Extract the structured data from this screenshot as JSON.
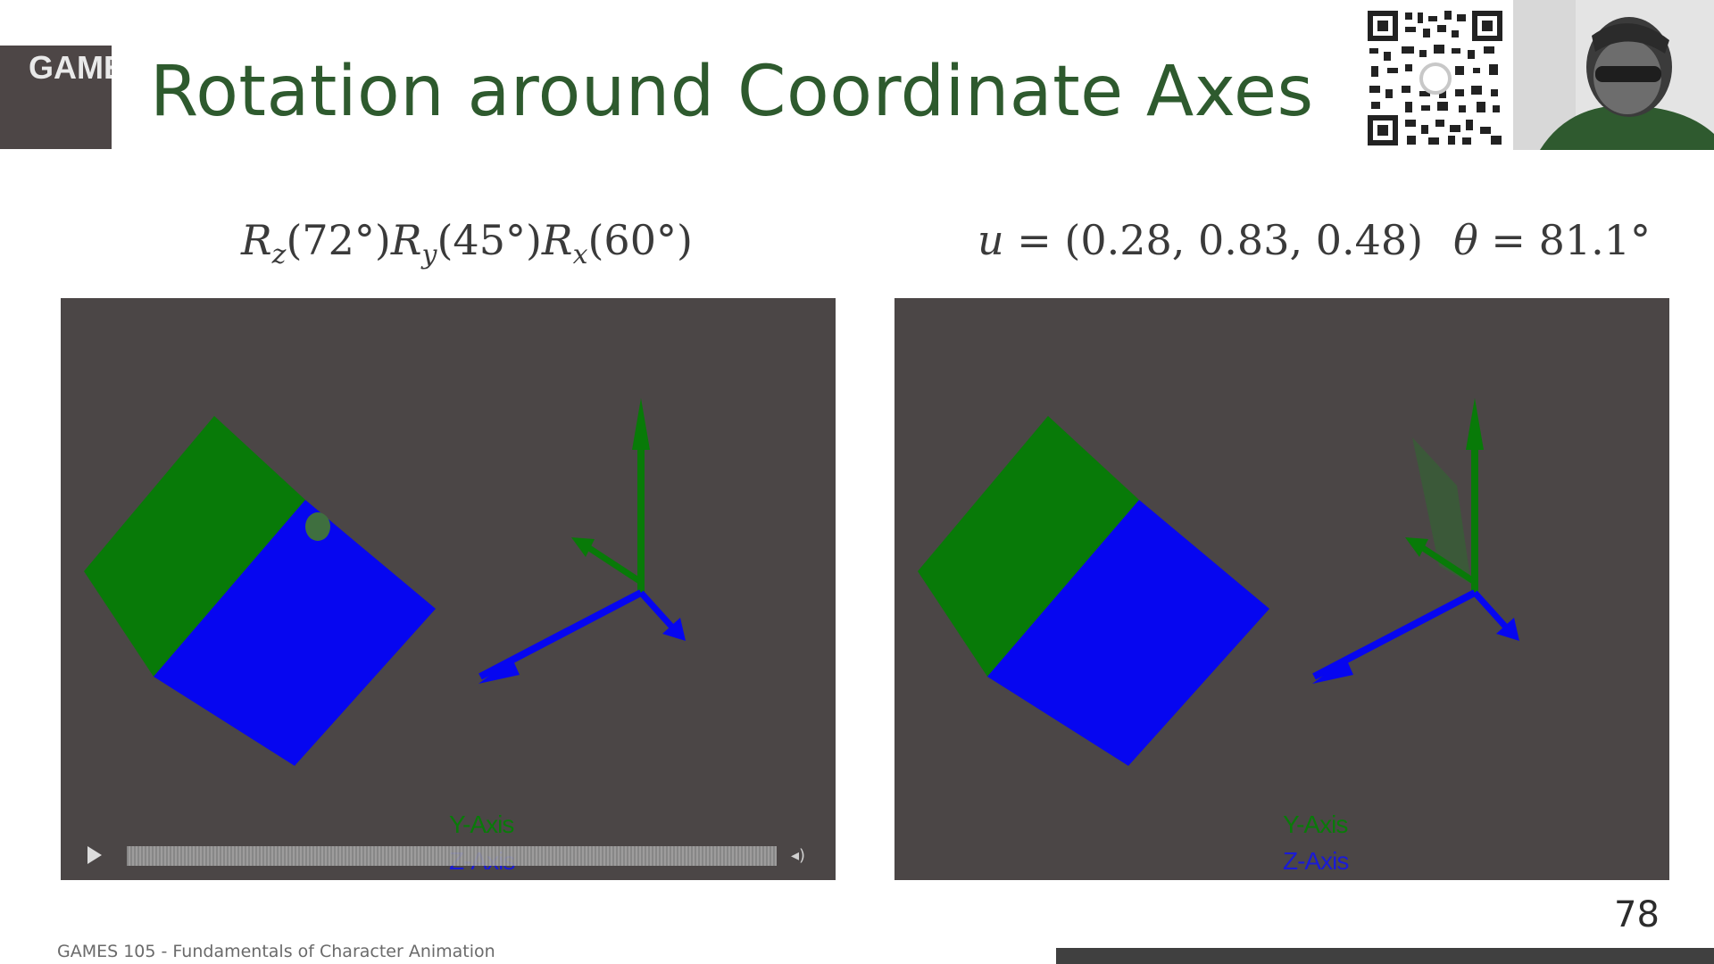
{
  "header": {
    "logo_text": "GAMES",
    "title": "Rotation around Coordinate Axes"
  },
  "formulas": {
    "left": {
      "R1": "R",
      "s1": "z",
      "a1": "(72°)",
      "R2": "R",
      "s2": "y",
      "a2": "(45°)",
      "R3": "R",
      "s3": "x",
      "a3": "(60°)"
    },
    "right": {
      "u": "u",
      "u_value": " = (0.28, 0.83, 0.48)",
      "theta": "θ",
      "theta_value": " = 81.1°"
    }
  },
  "panels": {
    "left": {
      "legend_y": "Y-Axis",
      "legend_z": "Z-Axis"
    },
    "right": {
      "legend_y": "Y-Axis",
      "legend_z": "Z-Axis"
    }
  },
  "video_controls": {
    "play_icon": "play-icon",
    "volume_icon": "volume-icon",
    "volume_glyph": "◂)"
  },
  "colors": {
    "panel_bg": "#4b4646",
    "green": "#087a08",
    "blue": "#0606f0",
    "title": "#2e5a2e"
  },
  "footer": {
    "course": "GAMES 105 - Fundamentals of Character Animation",
    "page_number": "78"
  }
}
